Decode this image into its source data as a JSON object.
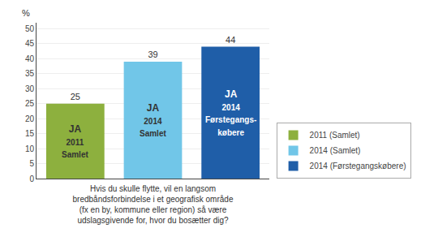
{
  "chart_data": {
    "type": "bar",
    "categories": [
      null,
      null,
      null
    ],
    "series": [
      {
        "name": "2011 (Samlet)",
        "color": "#8db03e",
        "values": [
          25,
          null,
          null
        ],
        "annotation": "JA\n2011\nSamlet"
      },
      {
        "name": "2014 (Samlet)",
        "color": "#71c6e8",
        "values": [
          null,
          39,
          null
        ],
        "annotation": "JA\n2014\nSamlet"
      },
      {
        "name": "2014 (Førstegangskøbere)",
        "color": "#1f5ea8",
        "values": [
          null,
          null,
          44
        ],
        "annotation": "JA\n2014\nFørstegangs-\nkøbere"
      }
    ],
    "y_label": "%",
    "x_label": "Hvis du skulle flytte, vil en langsom\nbredbåndsforbindelse i et geografisk område\n(fx en by, kommune eller region) så være\nudslagsgivende for, hvor du bosætter dig?",
    "ylim": [
      0,
      52
    ],
    "yticks": [
      0,
      5,
      10,
      15,
      20,
      25,
      30,
      35,
      40,
      45,
      50
    ],
    "grid": true,
    "data_labels": true,
    "tick_labels": "y",
    "legend": "lower right"
  }
}
